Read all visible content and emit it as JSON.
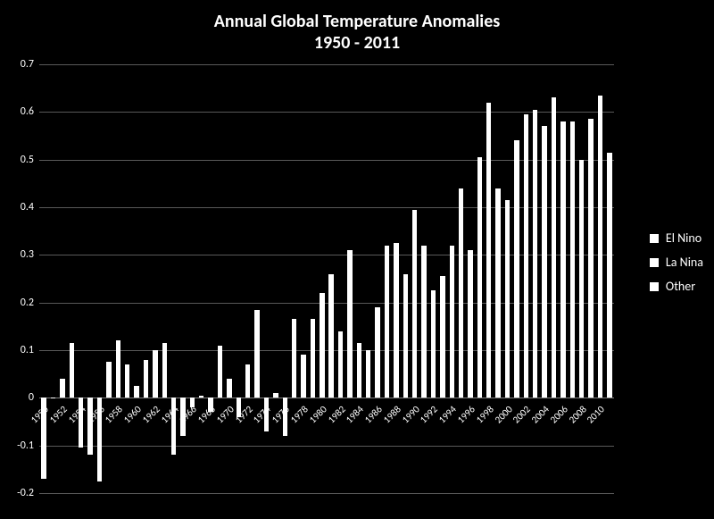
{
  "chart": {
    "type": "bar",
    "title_line1": "Annual Global Temperature Anomalies",
    "title_line2": "1950 - 2011",
    "title_fontsize": 20,
    "title_color": "#ffffff",
    "background_color": "#000000",
    "bar_color": "#ffffff",
    "grid_color": "#595959",
    "axis_label_color": "#ffffff",
    "axis_label_fontsize": 12,
    "ylim": [
      -0.2,
      0.7
    ],
    "yticks": [
      -0.2,
      -0.1,
      0,
      0.1,
      0.2,
      0.3,
      0.4,
      0.5,
      0.6,
      0.7
    ],
    "xtick_step": 2,
    "bar_group_width": 0.95,
    "legend": {
      "position": "right",
      "items": [
        "El Nino",
        "La Nina",
        "Other"
      ],
      "swatch_color": "#ffffff",
      "text_color": "#ffffff",
      "fontsize": 14
    },
    "years": [
      1950,
      1951,
      1952,
      1953,
      1954,
      1955,
      1956,
      1957,
      1958,
      1959,
      1960,
      1961,
      1962,
      1963,
      1964,
      1965,
      1966,
      1967,
      1968,
      1969,
      1970,
      1971,
      1972,
      1973,
      1974,
      1975,
      1976,
      1977,
      1978,
      1979,
      1980,
      1981,
      1982,
      1983,
      1984,
      1985,
      1986,
      1987,
      1988,
      1989,
      1990,
      1991,
      1992,
      1993,
      1994,
      1995,
      1996,
      1997,
      1998,
      1999,
      2000,
      2001,
      2002,
      2003,
      2004,
      2005,
      2006,
      2007,
      2008,
      2009,
      2010,
      2011
    ],
    "values": [
      -0.17,
      0.0,
      0.04,
      0.115,
      -0.105,
      -0.12,
      -0.175,
      0.075,
      0.12,
      0.07,
      0.025,
      0.08,
      0.1,
      0.115,
      -0.12,
      -0.08,
      -0.02,
      0.005,
      -0.03,
      0.11,
      0.04,
      -0.04,
      0.07,
      0.185,
      -0.07,
      0.01,
      -0.08,
      0.165,
      0.09,
      0.165,
      0.22,
      0.26,
      0.14,
      0.31,
      0.115,
      0.1,
      0.19,
      0.32,
      0.325,
      0.26,
      0.395,
      0.32,
      0.225,
      0.255,
      0.32,
      0.44,
      0.31,
      0.505,
      0.62,
      0.44,
      0.415,
      0.54,
      0.595,
      0.605,
      0.57,
      0.63,
      0.58,
      0.58,
      0.5,
      0.585,
      0.635,
      0.515
    ],
    "categories": [
      "La Nina",
      "El Nino",
      "Other",
      "El Nino",
      "La Nina",
      "La Nina",
      "La Nina",
      "El Nino",
      "El Nino",
      "Other",
      "Other",
      "Other",
      "Other",
      "El Nino",
      "La Nina",
      "El Nino",
      "El Nino",
      "Other",
      "Other",
      "El Nino",
      "El Nino",
      "La Nina",
      "El Nino",
      "El Nino",
      "La Nina",
      "La Nina",
      "La Nina",
      "El Nino",
      "Other",
      "Other",
      "El Nino",
      "Other",
      "El Nino",
      "El Nino",
      "La Nina",
      "La Nina",
      "Other",
      "El Nino",
      "El Nino",
      "La Nina",
      "Other",
      "El Nino",
      "El Nino",
      "Other",
      "Other",
      "El Nino",
      "La Nina",
      "El Nino",
      "El Nino",
      "La Nina",
      "La Nina",
      "Other",
      "El Nino",
      "El Nino",
      "Other",
      "El Nino",
      "Other",
      "El Nino",
      "La Nina",
      "Other",
      "El Nino",
      "La Nina"
    ]
  }
}
